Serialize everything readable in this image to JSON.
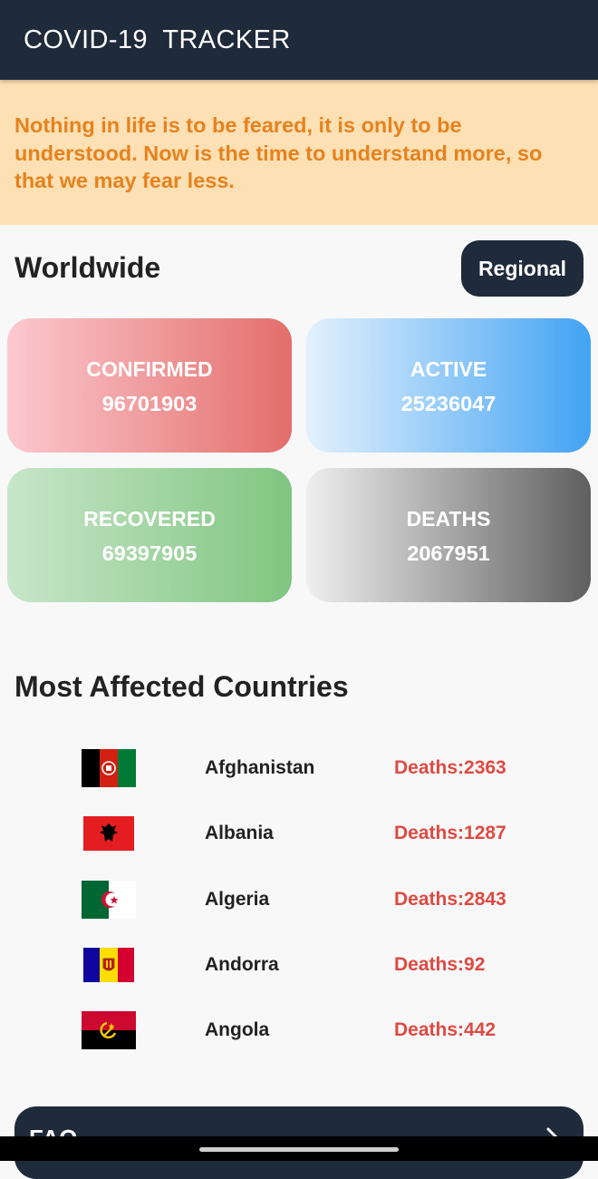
{
  "app": {
    "title": "COVID-19  TRACKER"
  },
  "quote": {
    "text": "Nothing in life is to be feared, it is only to be understood. Now is the time to understand more, so that we may fear less."
  },
  "worldwide": {
    "title": "Worldwide",
    "regional_button": "Regional",
    "stats": {
      "confirmed": {
        "label": "CONFIRMED",
        "value": "96701903"
      },
      "active": {
        "label": "ACTIVE",
        "value": "25236047"
      },
      "recovered": {
        "label": "RECOVERED",
        "value": "69397905"
      },
      "deaths": {
        "label": "DEATHS",
        "value": "2067951"
      }
    }
  },
  "affected": {
    "title": "Most Affected Countries",
    "countries": [
      {
        "name": "Afghanistan",
        "deaths": "Deaths:2363",
        "flag_icon": "afghanistan-flag-icon"
      },
      {
        "name": "Albania",
        "deaths": "Deaths:1287",
        "flag_icon": "albania-flag-icon"
      },
      {
        "name": "Algeria",
        "deaths": "Deaths:2843",
        "flag_icon": "algeria-flag-icon"
      },
      {
        "name": "Andorra",
        "deaths": "Deaths:92",
        "flag_icon": "andorra-flag-icon"
      },
      {
        "name": "Angola",
        "deaths": "Deaths:442",
        "flag_icon": "angola-flag-icon"
      }
    ]
  },
  "faq": {
    "label": "FAQ",
    "icon": "chevron-right-icon"
  },
  "colors": {
    "appbar": "#1f2a3b",
    "quote_background": "#fde0b4",
    "quote_text": "#e6821e",
    "deaths_text": "#de4a42",
    "page_background": "#f8f8f9"
  }
}
